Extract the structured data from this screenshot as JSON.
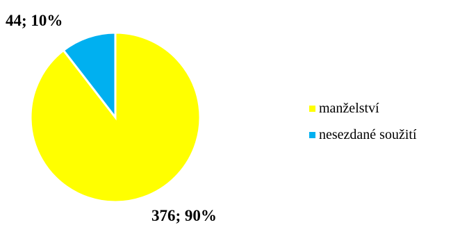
{
  "chart_data": {
    "type": "pie",
    "slices": [
      {
        "label": "manželství",
        "value": 376,
        "percent": 90,
        "color": "#FFFF00",
        "data_label": "376; 90%"
      },
      {
        "label": "nesezdané soužití",
        "value": 44,
        "percent": 10,
        "color": "#00B0F0",
        "data_label": "44; 10%"
      }
    ],
    "legend": {
      "position": "right",
      "entries": [
        "manželství",
        "nesezdané soužití"
      ]
    }
  }
}
